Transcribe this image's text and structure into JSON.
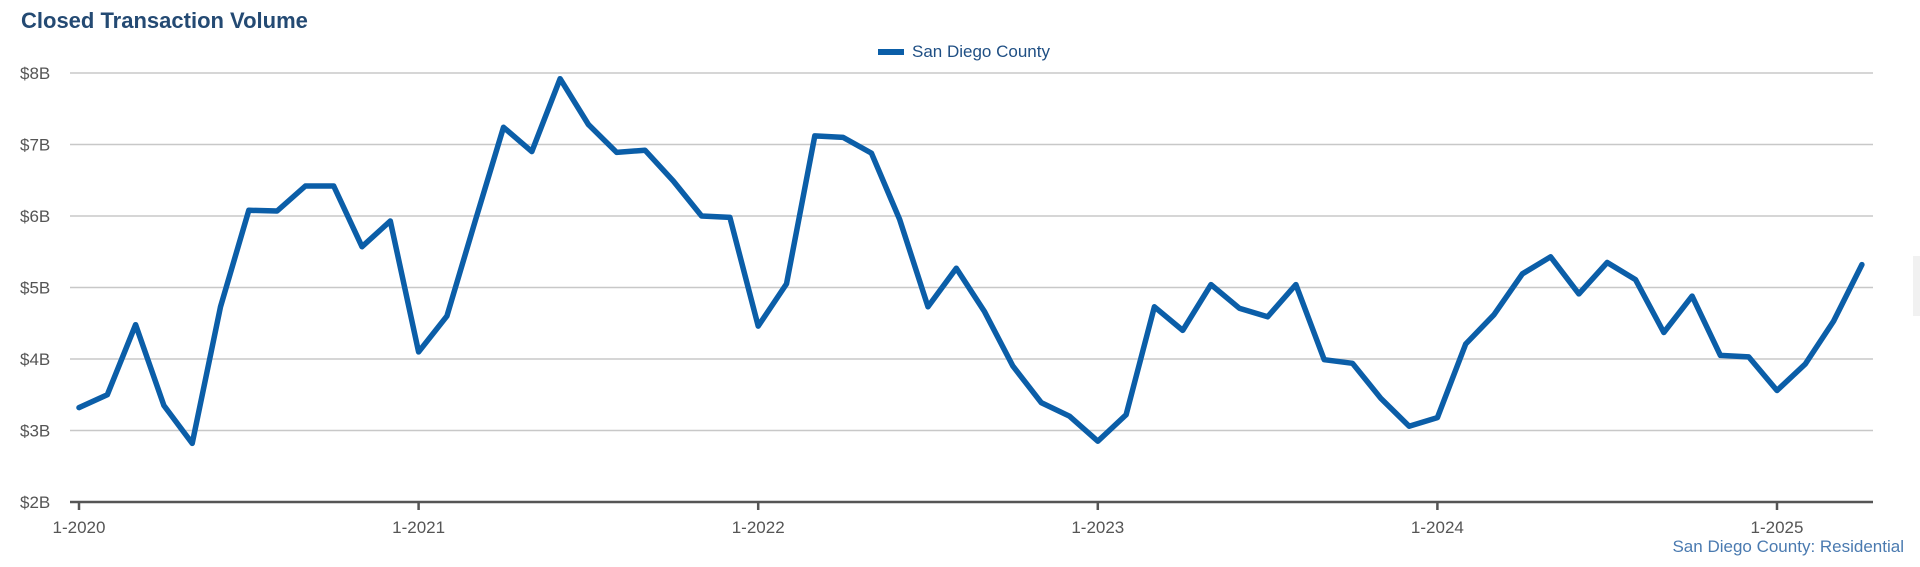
{
  "colors": {
    "series": "#0b5ea8",
    "title": "#244a73"
  },
  "chart_data": {
    "type": "line",
    "title": "Closed Transaction Volume",
    "source_label": "San Diego County: Residential",
    "legend_position": "top-center",
    "grid": true,
    "ylim": [
      2,
      8
    ],
    "yticks": [
      {
        "value": 2,
        "label": "$2B"
      },
      {
        "value": 3,
        "label": "$3B"
      },
      {
        "value": 4,
        "label": "$4B"
      },
      {
        "value": 5,
        "label": "$5B"
      },
      {
        "value": 6,
        "label": "$6B"
      },
      {
        "value": 7,
        "label": "$7B"
      },
      {
        "value": 8,
        "label": "$8B"
      }
    ],
    "xticks": [
      {
        "value": "2020-01",
        "label": "1-2020"
      },
      {
        "value": "2021-01",
        "label": "1-2021"
      },
      {
        "value": "2022-01",
        "label": "1-2022"
      },
      {
        "value": "2023-01",
        "label": "1-2023"
      },
      {
        "value": "2024-01",
        "label": "1-2024"
      },
      {
        "value": "2025-01",
        "label": "1-2025"
      }
    ],
    "x": [
      "2020-01",
      "2020-02",
      "2020-03",
      "2020-04",
      "2020-05",
      "2020-06",
      "2020-07",
      "2020-08",
      "2020-09",
      "2020-10",
      "2020-11",
      "2020-12",
      "2021-01",
      "2021-02",
      "2021-03",
      "2021-04",
      "2021-05",
      "2021-06",
      "2021-07",
      "2021-08",
      "2021-09",
      "2021-10",
      "2021-11",
      "2021-12",
      "2022-01",
      "2022-02",
      "2022-03",
      "2022-04",
      "2022-05",
      "2022-06",
      "2022-07",
      "2022-08",
      "2022-09",
      "2022-10",
      "2022-11",
      "2022-12",
      "2023-01",
      "2023-02",
      "2023-03",
      "2023-04",
      "2023-05",
      "2023-06",
      "2023-07",
      "2023-08",
      "2023-09",
      "2023-10",
      "2023-11",
      "2023-12",
      "2024-01",
      "2024-02",
      "2024-03",
      "2024-04",
      "2024-05",
      "2024-06",
      "2024-07",
      "2024-08",
      "2024-09",
      "2024-10",
      "2024-11",
      "2024-12",
      "2025-01",
      "2025-02",
      "2025-03",
      "2025-04"
    ],
    "series": [
      {
        "name": "San Diego County",
        "values": [
          3.32,
          3.5,
          4.48,
          3.35,
          2.82,
          4.73,
          6.08,
          6.07,
          6.42,
          6.42,
          5.57,
          5.93,
          4.1,
          4.6,
          5.93,
          7.24,
          6.9,
          7.92,
          7.28,
          6.89,
          6.92,
          6.49,
          6.0,
          5.98,
          4.46,
          5.05,
          7.12,
          7.1,
          6.88,
          5.95,
          4.73,
          5.27,
          4.66,
          3.9,
          3.39,
          3.2,
          2.85,
          3.22,
          4.73,
          4.4,
          5.04,
          4.71,
          4.59,
          5.04,
          3.99,
          3.94,
          3.45,
          3.06,
          3.18,
          4.21,
          4.62,
          5.19,
          5.43,
          4.91,
          5.35,
          5.11,
          4.37,
          4.88,
          4.05,
          4.03,
          3.56,
          3.93,
          4.53,
          5.32
        ]
      }
    ]
  }
}
